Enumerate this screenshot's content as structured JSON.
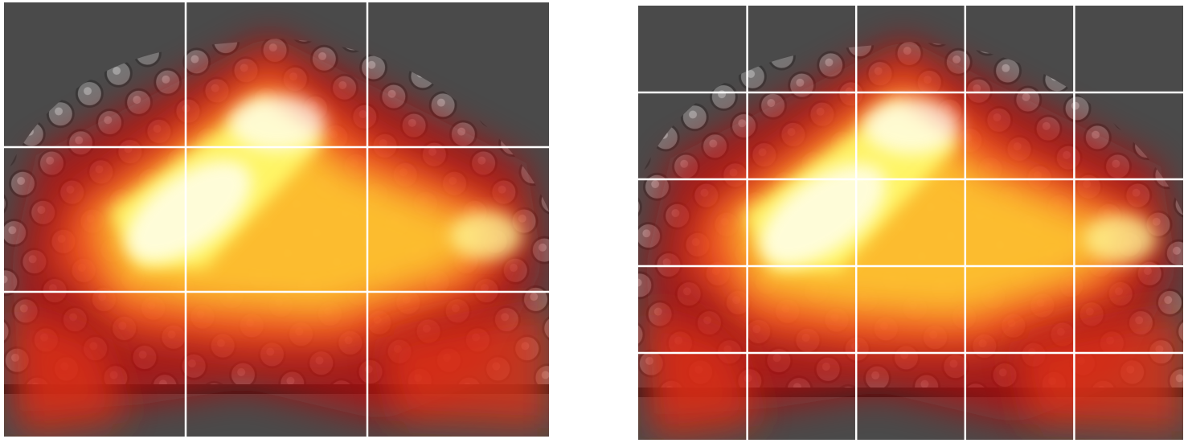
{
  "panels": [
    {
      "id": "left",
      "grid": {
        "rows": 3,
        "cols": 3
      },
      "grid_line_color": "#ffffff",
      "background_color": "#4a4a4a"
    },
    {
      "id": "right",
      "grid": {
        "rows": 5,
        "cols": 5
      },
      "grid_line_color": "#ffffff",
      "background_color": "#4a4a4a"
    }
  ],
  "colormap": [
    "#7a0000",
    "#d01010",
    "#ff4020",
    "#ffb020",
    "#ffff40",
    "#ffffff"
  ]
}
